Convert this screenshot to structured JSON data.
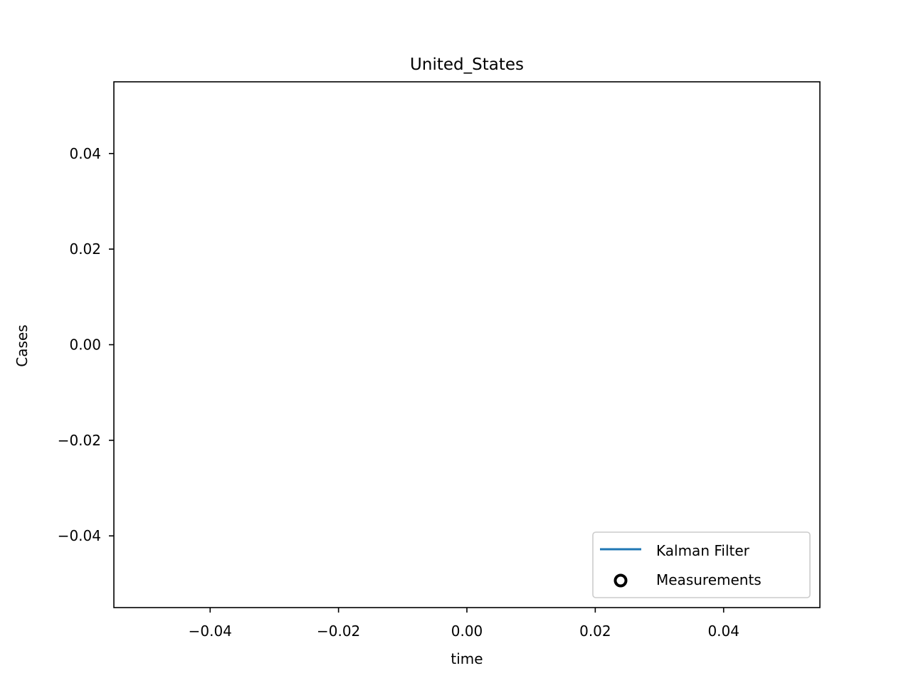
{
  "chart_data": {
    "type": "line",
    "title": "United_States",
    "xlabel": "time",
    "ylabel": "Cases",
    "xlim": [
      -0.055,
      0.055
    ],
    "ylim": [
      -0.055,
      0.055
    ],
    "xticks": [
      -0.04,
      -0.02,
      0.0,
      0.02,
      0.04
    ],
    "yticks": [
      -0.04,
      -0.02,
      0.0,
      0.02,
      0.04
    ],
    "xtick_labels": [
      "−0.04",
      "−0.02",
      "0.00",
      "0.02",
      "0.04"
    ],
    "ytick_labels": [
      "−0.04",
      "−0.02",
      "0.00",
      "0.02",
      "0.04"
    ],
    "grid": false,
    "legend_position": "lower right",
    "series": [
      {
        "name": "Kalman Filter",
        "type": "line",
        "color": "#1f77b4",
        "x": [],
        "y": []
      },
      {
        "name": "Measurements",
        "type": "scatter",
        "marker": "hollow-circle",
        "color": "#000000",
        "x": [],
        "y": []
      }
    ]
  }
}
